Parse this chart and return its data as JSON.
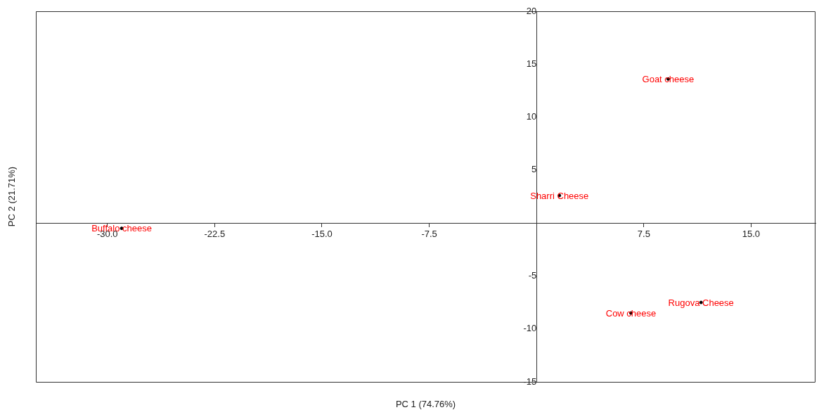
{
  "chart_data": {
    "type": "scatter",
    "xlabel": "PC 1 (74.76%)",
    "ylabel": "PC 2 (21.71%)",
    "x": [
      -29.0,
      9.2,
      1.6,
      11.5,
      6.6
    ],
    "series": [
      {
        "color": "#000000",
        "values": [
          -0.5,
          13.6,
          2.6,
          -7.5,
          -8.5
        ],
        "value_labels": [
          "Buffalo cheese",
          "Goat cheese",
          "Sharri Cheese",
          "Rugova Cheese",
          "Cow cheese"
        ]
      }
    ],
    "xlim": [
      -35,
      19.5
    ],
    "ylim": [
      -15,
      20
    ],
    "xticks": [
      {
        "value": -30,
        "label": "-30.0"
      },
      -22.5,
      {
        "value": -15,
        "label": "-15.0"
      },
      -7.5,
      {
        "value": 0,
        "label": null
      },
      7.5,
      {
        "value": 15,
        "label": "15.0"
      }
    ],
    "yticks": [
      -15,
      -10,
      -5,
      5,
      10,
      15,
      20
    ],
    "grid": false,
    "legend": false,
    "marker": "circle"
  }
}
